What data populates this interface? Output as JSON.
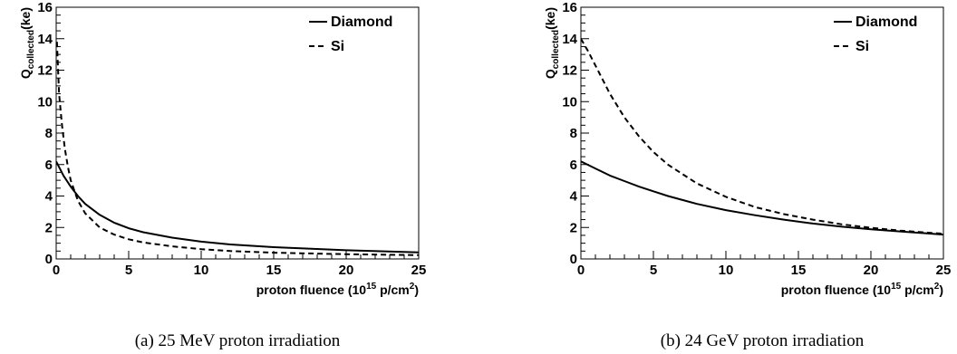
{
  "chart_data": [
    {
      "type": "line",
      "xlabel": "proton fluence (10",
      "xlabel_sup": "15",
      "xlabel_tail": " p/cm",
      "xlabel_sup2": "2",
      "xlabel_end": ")",
      "ylabel_main": "Q",
      "ylabel_sub": "collected",
      "ylabel_tail": "(ke)",
      "xlim": [
        0,
        25
      ],
      "ylim": [
        0,
        16
      ],
      "x_ticks": [
        0,
        5,
        10,
        15,
        20,
        25
      ],
      "y_ticks": [
        0,
        2,
        4,
        6,
        8,
        10,
        12,
        14,
        16
      ],
      "legend": "top-right",
      "caption": "(a)  25 MeV proton irradiation",
      "series": [
        {
          "name": "Diamond",
          "style": "solid",
          "x": [
            0,
            0.5,
            1,
            1.5,
            2,
            3,
            4,
            5,
            6,
            8,
            10,
            12,
            15,
            20,
            25
          ],
          "values": [
            6.2,
            5.3,
            4.6,
            4.0,
            3.5,
            2.8,
            2.3,
            1.95,
            1.7,
            1.35,
            1.1,
            0.92,
            0.75,
            0.55,
            0.42
          ]
        },
        {
          "name": "Si",
          "style": "dashed",
          "x": [
            0.05,
            0.2,
            0.4,
            0.6,
            0.8,
            1.0,
            1.5,
            2,
            3,
            4,
            5,
            6,
            8,
            10,
            12,
            15,
            20,
            25
          ],
          "values": [
            13.8,
            10.5,
            8.5,
            7.0,
            5.9,
            5.0,
            3.7,
            2.9,
            2.0,
            1.55,
            1.25,
            1.05,
            0.8,
            0.62,
            0.5,
            0.4,
            0.3,
            0.24
          ]
        }
      ]
    },
    {
      "type": "line",
      "xlabel": "proton fluence (10",
      "xlabel_sup": "15",
      "xlabel_tail": " p/cm",
      "xlabel_sup2": "2",
      "xlabel_end": ")",
      "ylabel_main": "Q",
      "ylabel_sub": "collected",
      "ylabel_tail": "(ke)",
      "xlim": [
        0,
        25
      ],
      "ylim": [
        0,
        16
      ],
      "x_ticks": [
        0,
        5,
        10,
        15,
        20,
        25
      ],
      "y_ticks": [
        0,
        2,
        4,
        6,
        8,
        10,
        12,
        14,
        16
      ],
      "legend": "top-right",
      "caption": "(b)  24 GeV proton irradiation",
      "series": [
        {
          "name": "Diamond",
          "style": "solid",
          "x": [
            0,
            1,
            2,
            3,
            4,
            5,
            6,
            8,
            10,
            12,
            14,
            16,
            18,
            20,
            22,
            25
          ],
          "values": [
            6.2,
            5.75,
            5.3,
            4.95,
            4.6,
            4.3,
            4.0,
            3.5,
            3.1,
            2.78,
            2.5,
            2.25,
            2.05,
            1.88,
            1.75,
            1.55
          ]
        },
        {
          "name": "Si",
          "style": "dashed",
          "x": [
            0,
            0.5,
            1,
            1.5,
            2,
            3,
            4,
            5,
            6,
            8,
            10,
            12,
            14,
            16,
            18,
            20,
            22,
            25
          ],
          "values": [
            14.0,
            13.2,
            12.3,
            11.4,
            10.5,
            9.0,
            7.8,
            6.8,
            6.0,
            4.8,
            3.95,
            3.3,
            2.85,
            2.5,
            2.2,
            1.98,
            1.8,
            1.6
          ]
        }
      ]
    }
  ]
}
